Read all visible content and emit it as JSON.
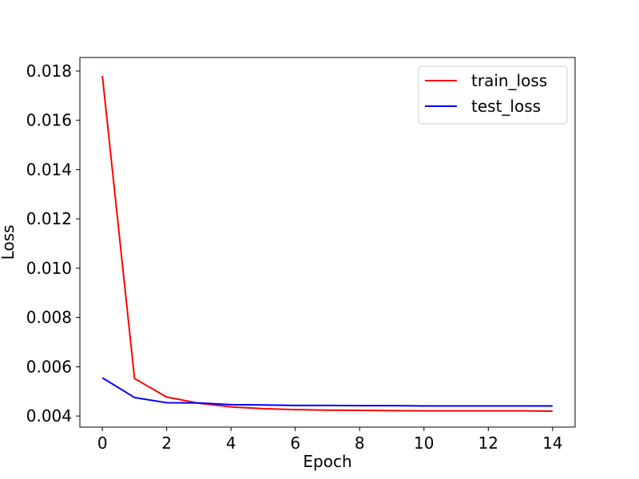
{
  "chart_data": {
    "type": "line",
    "title": "",
    "xlabel": "Epoch",
    "ylabel": "Loss",
    "xlim": [
      -0.7,
      14.7
    ],
    "ylim": [
      0.00355,
      0.01855
    ],
    "xticks": [
      0,
      2,
      4,
      6,
      8,
      10,
      12,
      14
    ],
    "xtick_labels": [
      "0",
      "2",
      "4",
      "6",
      "8",
      "10",
      "12",
      "14"
    ],
    "yticks": [
      0.004,
      0.006,
      0.008,
      0.01,
      0.012,
      0.014,
      0.016,
      0.018
    ],
    "ytick_labels": [
      "0.004",
      "0.006",
      "0.008",
      "0.010",
      "0.012",
      "0.014",
      "0.016",
      "0.018"
    ],
    "grid": false,
    "legend_position": "top-right",
    "x": [
      0,
      1,
      2,
      3,
      4,
      5,
      6,
      7,
      8,
      9,
      10,
      11,
      12,
      13,
      14
    ],
    "series": [
      {
        "name": "train_loss",
        "color": "#ff0000",
        "values": [
          0.0178,
          0.00552,
          0.00477,
          0.00452,
          0.00437,
          0.0043,
          0.00426,
          0.00424,
          0.00423,
          0.00422,
          0.00421,
          0.00421,
          0.00421,
          0.00421,
          0.0042
        ]
      },
      {
        "name": "test_loss",
        "color": "#0000ff",
        "values": [
          0.00555,
          0.00475,
          0.00454,
          0.00453,
          0.00446,
          0.00445,
          0.00443,
          0.00443,
          0.00442,
          0.00442,
          0.00441,
          0.00441,
          0.00441,
          0.00441,
          0.00441
        ]
      }
    ]
  }
}
